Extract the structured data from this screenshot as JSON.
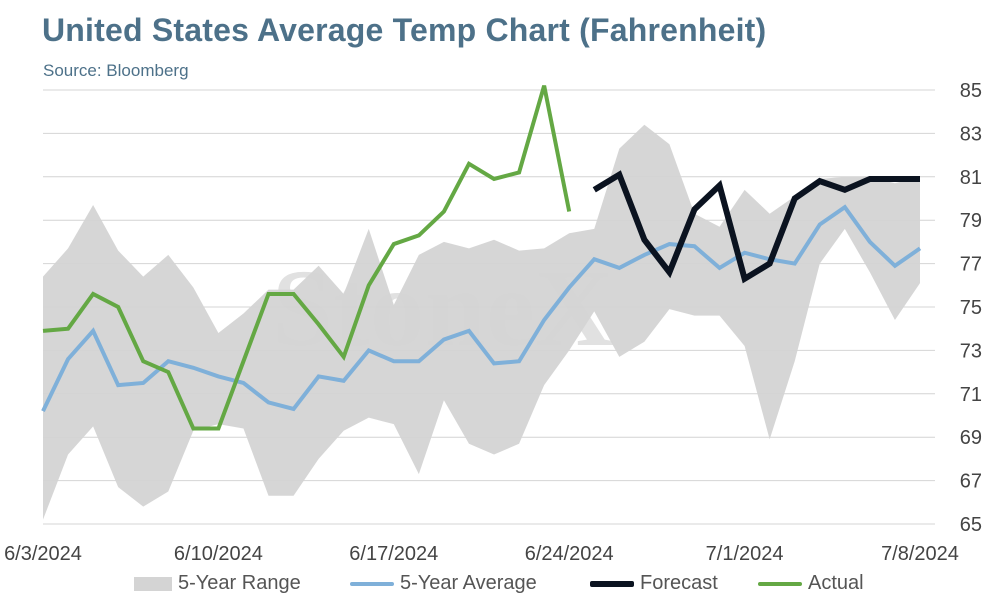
{
  "header": {
    "title": "United States Average Temp Chart (Fahrenheit)",
    "subtitle": "Source: Bloomberg"
  },
  "watermark": "StoneX",
  "colors": {
    "range": "#d4d4d4",
    "average": "#7fb0d9",
    "forecast": "#0b1320",
    "actual": "#64a844",
    "title": "#4d7189"
  },
  "chart_data": {
    "type": "line",
    "title": "United States Average Temp Chart (Fahrenheit)",
    "x_tick_labels": [
      "6/3/2024",
      "6/10/2024",
      "6/17/2024",
      "6/24/2024",
      "7/1/2024",
      "7/8/2024"
    ],
    "x_range_days": [
      0,
      35
    ],
    "ylim": [
      65,
      85
    ],
    "y_ticks": [
      65,
      67,
      69,
      71,
      73,
      75,
      77,
      79,
      81,
      83,
      85
    ],
    "y_axis_side": "right",
    "grid": true,
    "legend_position": "bottom",
    "series": [
      {
        "name": "5-Year Range",
        "kind": "band",
        "x": [
          0,
          1,
          2,
          3,
          4,
          5,
          6,
          7,
          8,
          9,
          10,
          11,
          12,
          13,
          14,
          15,
          16,
          17,
          18,
          19,
          20,
          21,
          22,
          23,
          24,
          25,
          26,
          27,
          28,
          29,
          30,
          31,
          32,
          33,
          34,
          35
        ],
        "upper": [
          76.4,
          77.7,
          79.7,
          77.6,
          76.4,
          77.4,
          75.9,
          73.8,
          74.7,
          75.8,
          75.8,
          76.9,
          75.6,
          78.6,
          75.1,
          77.4,
          78.0,
          77.7,
          78.1,
          77.6,
          77.7,
          78.4,
          78.6,
          82.3,
          83.4,
          82.5,
          79.3,
          78.7,
          80.4,
          79.3,
          80.1,
          80.9,
          81.0,
          81.0,
          80.7,
          81.0
        ],
        "lower": [
          65.2,
          68.2,
          69.5,
          66.7,
          65.8,
          66.5,
          69.3,
          69.6,
          69.4,
          66.3,
          66.3,
          68.0,
          69.3,
          69.9,
          69.6,
          67.3,
          70.7,
          68.7,
          68.2,
          68.7,
          71.4,
          73.0,
          74.8,
          72.7,
          73.4,
          74.9,
          74.6,
          74.6,
          73.2,
          68.9,
          72.5,
          77.0,
          78.6,
          76.6,
          74.4,
          76.1
        ]
      },
      {
        "name": "5-Year Average",
        "kind": "line",
        "x": [
          0,
          1,
          2,
          3,
          4,
          5,
          6,
          7,
          8,
          9,
          10,
          11,
          12,
          13,
          14,
          15,
          16,
          17,
          18,
          19,
          20,
          21,
          22,
          23,
          24,
          25,
          26,
          27,
          28,
          29,
          30,
          31,
          32,
          33,
          34,
          35
        ],
        "values": [
          70.2,
          72.6,
          73.9,
          71.4,
          71.5,
          72.5,
          72.2,
          71.8,
          71.5,
          70.6,
          70.3,
          71.8,
          71.6,
          73.0,
          72.5,
          72.5,
          73.5,
          73.9,
          72.4,
          72.5,
          74.4,
          75.9,
          77.2,
          76.8,
          77.4,
          77.9,
          77.8,
          76.8,
          77.5,
          77.2,
          77.0,
          78.8,
          79.6,
          78.0,
          76.9,
          77.7
        ]
      },
      {
        "name": "Forecast",
        "kind": "line",
        "x": [
          22,
          23,
          24,
          25,
          26,
          27,
          28,
          29,
          30,
          31,
          32,
          33,
          34,
          35
        ],
        "values": [
          80.4,
          81.1,
          78.1,
          76.6,
          79.5,
          80.6,
          76.3,
          77.0,
          80.0,
          80.8,
          80.4,
          80.9,
          80.9,
          80.9
        ]
      },
      {
        "name": "Actual",
        "kind": "line",
        "x": [
          0,
          1,
          2,
          3,
          4,
          5,
          6,
          7,
          8,
          9,
          10,
          11,
          12,
          13,
          14,
          15,
          16,
          17,
          18,
          19,
          20,
          21
        ],
        "values": [
          73.9,
          74.0,
          75.6,
          75.0,
          72.5,
          72.0,
          69.4,
          69.4,
          72.5,
          75.6,
          75.6,
          74.2,
          72.7,
          76.0,
          77.9,
          78.3,
          79.4,
          81.6,
          80.9,
          81.2,
          85.2,
          79.4
        ]
      }
    ]
  },
  "legend": {
    "range_label": "5-Year Range",
    "average_label": "5-Year Average",
    "forecast_label": "Forecast",
    "actual_label": "Actual"
  }
}
